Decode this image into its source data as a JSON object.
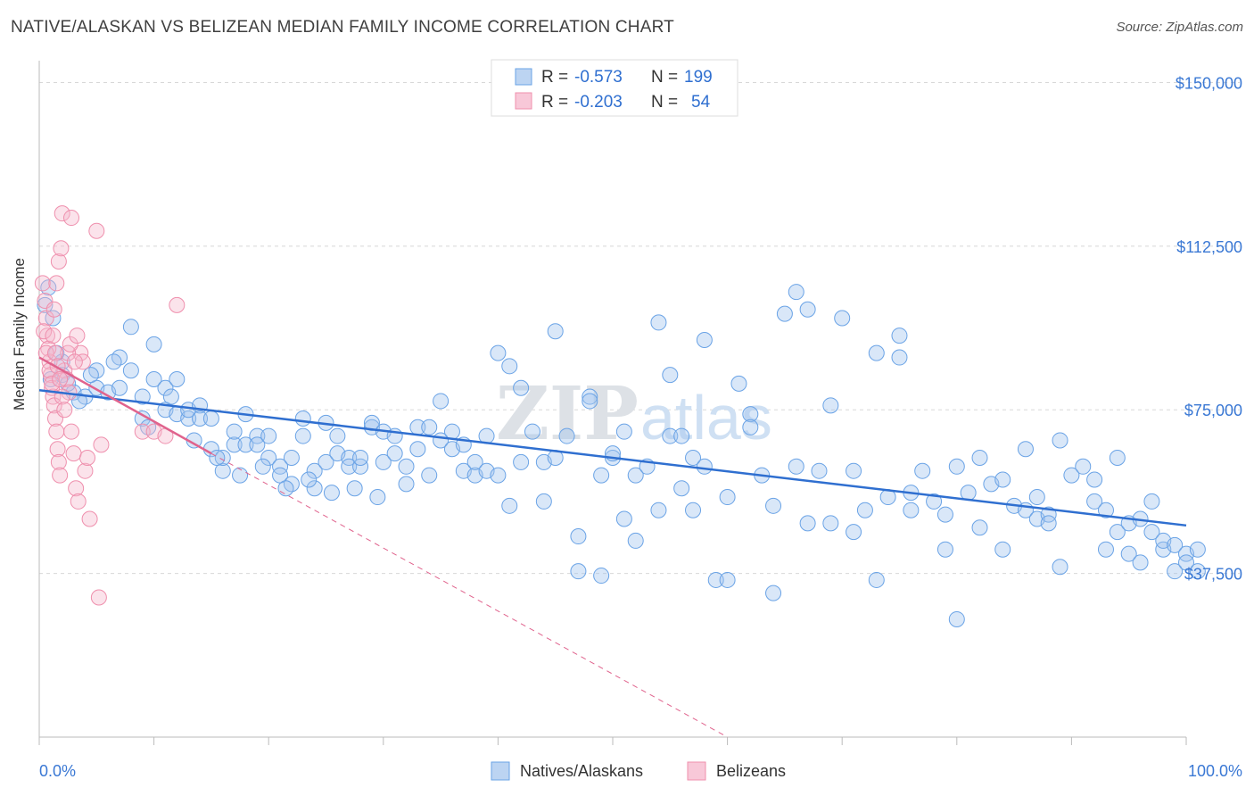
{
  "header": {
    "title": "NATIVE/ALASKAN VS BELIZEAN MEDIAN FAMILY INCOME CORRELATION CHART",
    "source": "Source: ZipAtlas.com"
  },
  "watermark": {
    "zip": "ZIP",
    "atlas": "atlas"
  },
  "legend_box": {
    "rows": [
      {
        "r_label": "R =",
        "r_value": "-0.573",
        "n_label": "N =",
        "n_value": "199",
        "color": "#6aa3e6"
      },
      {
        "r_label": "R =",
        "r_value": "-0.203",
        "n_label": "N =",
        "n_value": "54",
        "color": "#ef8fad"
      }
    ]
  },
  "chart_data": {
    "type": "scatter",
    "title": "NATIVE/ALASKAN VS BELIZEAN MEDIAN FAMILY INCOME CORRELATION CHART",
    "xlabel": "",
    "ylabel": "Median Family Income",
    "x_range": [
      0,
      100
    ],
    "y_range": [
      0,
      155000
    ],
    "x_tick_labels": [
      "0.0%",
      "100.0%"
    ],
    "y_ticks": [
      37500,
      75000,
      112500,
      150000
    ],
    "y_tick_labels": [
      "$37,500",
      "$75,000",
      "$112,500",
      "$150,000"
    ],
    "grid": true,
    "legend_position": "bottom",
    "series": [
      {
        "name": "Natives/Alaskans",
        "color": "#6aa3e6",
        "line_color": "#2f6fd0",
        "r": -0.573,
        "n": 199,
        "trend": {
          "x": [
            0,
            100
          ],
          "y": [
            79500,
            48500
          ]
        },
        "points": [
          [
            1,
            82000
          ],
          [
            2,
            86000
          ],
          [
            2,
            83000
          ],
          [
            3,
            79000
          ],
          [
            4,
            78000
          ],
          [
            5,
            84000
          ],
          [
            5,
            80000
          ],
          [
            6,
            79000
          ],
          [
            7,
            87000
          ],
          [
            7,
            80000
          ],
          [
            8,
            84000
          ],
          [
            8,
            94000
          ],
          [
            9,
            78000
          ],
          [
            9,
            73000
          ],
          [
            10,
            82000
          ],
          [
            10,
            90000
          ],
          [
            11,
            80000
          ],
          [
            11,
            75000
          ],
          [
            12,
            74000
          ],
          [
            12,
            82000
          ],
          [
            13,
            73000
          ],
          [
            13,
            75000
          ],
          [
            14,
            76000
          ],
          [
            14,
            73000
          ],
          [
            15,
            66000
          ],
          [
            15,
            73000
          ],
          [
            16,
            61000
          ],
          [
            16,
            64000
          ],
          [
            17,
            67000
          ],
          [
            17,
            70000
          ],
          [
            18,
            74000
          ],
          [
            18,
            67000
          ],
          [
            19,
            69000
          ],
          [
            19,
            67000
          ],
          [
            20,
            64000
          ],
          [
            20,
            69000
          ],
          [
            21,
            62000
          ],
          [
            21,
            60000
          ],
          [
            22,
            64000
          ],
          [
            22,
            58000
          ],
          [
            23,
            69000
          ],
          [
            23,
            73000
          ],
          [
            24,
            61000
          ],
          [
            24,
            57000
          ],
          [
            25,
            72000
          ],
          [
            25,
            63000
          ],
          [
            26,
            69000
          ],
          [
            26,
            65000
          ],
          [
            27,
            64000
          ],
          [
            27,
            62000
          ],
          [
            28,
            62000
          ],
          [
            28,
            64000
          ],
          [
            29,
            71000
          ],
          [
            29,
            72000
          ],
          [
            30,
            63000
          ],
          [
            30,
            70000
          ],
          [
            31,
            69000
          ],
          [
            31,
            65000
          ],
          [
            32,
            62000
          ],
          [
            32,
            58000
          ],
          [
            33,
            71000
          ],
          [
            33,
            66000
          ],
          [
            34,
            60000
          ],
          [
            34,
            71000
          ],
          [
            35,
            68000
          ],
          [
            35,
            77000
          ],
          [
            36,
            66000
          ],
          [
            36,
            70000
          ],
          [
            37,
            61000
          ],
          [
            37,
            67000
          ],
          [
            38,
            60000
          ],
          [
            38,
            63000
          ],
          [
            39,
            69000
          ],
          [
            39,
            61000
          ],
          [
            40,
            60000
          ],
          [
            40,
            88000
          ],
          [
            41,
            53000
          ],
          [
            41,
            85000
          ],
          [
            42,
            80000
          ],
          [
            42,
            63000
          ],
          [
            43,
            70000
          ],
          [
            44,
            54000
          ],
          [
            44,
            63000
          ],
          [
            45,
            93000
          ],
          [
            45,
            64000
          ],
          [
            46,
            69000
          ],
          [
            47,
            38000
          ],
          [
            47,
            46000
          ],
          [
            48,
            78000
          ],
          [
            48,
            77000
          ],
          [
            49,
            37000
          ],
          [
            49,
            60000
          ],
          [
            50,
            64000
          ],
          [
            50,
            65000
          ],
          [
            51,
            70000
          ],
          [
            51,
            50000
          ],
          [
            52,
            60000
          ],
          [
            52,
            45000
          ],
          [
            53,
            62000
          ],
          [
            54,
            95000
          ],
          [
            54,
            52000
          ],
          [
            55,
            83000
          ],
          [
            55,
            69000
          ],
          [
            56,
            57000
          ],
          [
            56,
            69000
          ],
          [
            57,
            52000
          ],
          [
            57,
            64000
          ],
          [
            58,
            62000
          ],
          [
            58,
            91000
          ],
          [
            59,
            36000
          ],
          [
            60,
            36000
          ],
          [
            60,
            55000
          ],
          [
            61,
            81000
          ],
          [
            62,
            74000
          ],
          [
            62,
            71000
          ],
          [
            63,
            60000
          ],
          [
            64,
            53000
          ],
          [
            64,
            33000
          ],
          [
            65,
            97000
          ],
          [
            66,
            62000
          ],
          [
            66,
            102000
          ],
          [
            67,
            49000
          ],
          [
            67,
            98000
          ],
          [
            68,
            61000
          ],
          [
            69,
            49000
          ],
          [
            69,
            76000
          ],
          [
            70,
            96000
          ],
          [
            71,
            47000
          ],
          [
            71,
            61000
          ],
          [
            72,
            52000
          ],
          [
            73,
            88000
          ],
          [
            73,
            36000
          ],
          [
            74,
            55000
          ],
          [
            75,
            87000
          ],
          [
            75,
            92000
          ],
          [
            76,
            56000
          ],
          [
            76,
            52000
          ],
          [
            77,
            61000
          ],
          [
            78,
            54000
          ],
          [
            79,
            51000
          ],
          [
            79,
            43000
          ],
          [
            80,
            27000
          ],
          [
            80,
            62000
          ],
          [
            81,
            56000
          ],
          [
            82,
            48000
          ],
          [
            82,
            64000
          ],
          [
            83,
            58000
          ],
          [
            84,
            59000
          ],
          [
            84,
            43000
          ],
          [
            85,
            53000
          ],
          [
            86,
            66000
          ],
          [
            86,
            52000
          ],
          [
            87,
            55000
          ],
          [
            87,
            50000
          ],
          [
            88,
            51000
          ],
          [
            88,
            49000
          ],
          [
            89,
            39000
          ],
          [
            89,
            68000
          ],
          [
            90,
            60000
          ],
          [
            91,
            62000
          ],
          [
            92,
            54000
          ],
          [
            92,
            59000
          ],
          [
            93,
            43000
          ],
          [
            93,
            52000
          ],
          [
            94,
            64000
          ],
          [
            94,
            47000
          ],
          [
            95,
            49000
          ],
          [
            95,
            42000
          ],
          [
            96,
            50000
          ],
          [
            96,
            40000
          ],
          [
            97,
            47000
          ],
          [
            97,
            54000
          ],
          [
            98,
            43000
          ],
          [
            98,
            45000
          ],
          [
            99,
            44000
          ],
          [
            99,
            38000
          ],
          [
            100,
            42000
          ],
          [
            100,
            40000
          ],
          [
            101,
            38000
          ],
          [
            101,
            43000
          ],
          [
            0.5,
            99000
          ],
          [
            0.8,
            103000
          ],
          [
            1.2,
            96000
          ],
          [
            1.5,
            88000
          ],
          [
            2.5,
            81000
          ],
          [
            3.5,
            77000
          ],
          [
            4.5,
            83000
          ],
          [
            6.5,
            86000
          ],
          [
            9.5,
            71000
          ],
          [
            11.5,
            78000
          ],
          [
            13.5,
            68000
          ],
          [
            15.5,
            64000
          ],
          [
            17.5,
            60000
          ],
          [
            19.5,
            62000
          ],
          [
            21.5,
            57000
          ],
          [
            23.5,
            59000
          ],
          [
            25.5,
            56000
          ],
          [
            27.5,
            57000
          ],
          [
            29.5,
            55000
          ]
        ]
      },
      {
        "name": "Belizeans",
        "color": "#ef8fad",
        "line_color": "#e0638d",
        "r": -0.203,
        "n": 54,
        "trend": {
          "x": [
            0,
            15
          ],
          "y": [
            87000,
            65000
          ],
          "dashed_to": [
            60,
            0
          ]
        },
        "points": [
          [
            0.3,
            104000
          ],
          [
            0.5,
            100000
          ],
          [
            0.6,
            96000
          ],
          [
            0.7,
            92000
          ],
          [
            0.8,
            89000
          ],
          [
            0.9,
            86000
          ],
          [
            1.0,
            83000
          ],
          [
            1.1,
            80000
          ],
          [
            1.2,
            78000
          ],
          [
            1.3,
            76000
          ],
          [
            1.4,
            73000
          ],
          [
            1.5,
            70000
          ],
          [
            1.6,
            66000
          ],
          [
            1.7,
            63000
          ],
          [
            1.8,
            60000
          ],
          [
            0.4,
            93000
          ],
          [
            0.6,
            88000
          ],
          [
            0.9,
            84000
          ],
          [
            1.1,
            81000
          ],
          [
            1.3,
            98000
          ],
          [
            1.5,
            104000
          ],
          [
            1.7,
            109000
          ],
          [
            1.9,
            112000
          ],
          [
            2.0,
            120000
          ],
          [
            2.2,
            84000
          ],
          [
            2.4,
            82000
          ],
          [
            2.6,
            79000
          ],
          [
            2.8,
            70000
          ],
          [
            3.0,
            65000
          ],
          [
            3.2,
            57000
          ],
          [
            3.4,
            54000
          ],
          [
            3.6,
            88000
          ],
          [
            3.8,
            86000
          ],
          [
            4.0,
            61000
          ],
          [
            4.2,
            64000
          ],
          [
            4.4,
            50000
          ],
          [
            2.5,
            88000
          ],
          [
            2.7,
            90000
          ],
          [
            3.1,
            86000
          ],
          [
            3.3,
            92000
          ],
          [
            1.2,
            92000
          ],
          [
            1.4,
            88000
          ],
          [
            1.6,
            85000
          ],
          [
            1.8,
            82000
          ],
          [
            2.0,
            78000
          ],
          [
            2.2,
            75000
          ],
          [
            5.0,
            116000
          ],
          [
            5.2,
            32000
          ],
          [
            5.4,
            67000
          ],
          [
            9.0,
            70000
          ],
          [
            10.0,
            70000
          ],
          [
            11.0,
            69000
          ],
          [
            12.0,
            99000
          ],
          [
            2.8,
            119000
          ]
        ]
      }
    ]
  }
}
